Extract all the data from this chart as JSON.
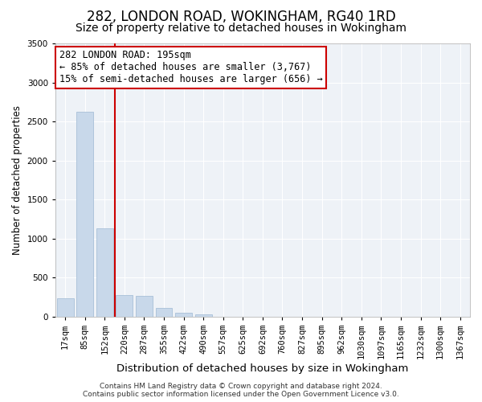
{
  "title": "282, LONDON ROAD, WOKINGHAM, RG40 1RD",
  "subtitle": "Size of property relative to detached houses in Wokingham",
  "xlabel": "Distribution of detached houses by size in Wokingham",
  "ylabel": "Number of detached properties",
  "categories": [
    "17sqm",
    "85sqm",
    "152sqm",
    "220sqm",
    "287sqm",
    "355sqm",
    "422sqm",
    "490sqm",
    "557sqm",
    "625sqm",
    "692sqm",
    "760sqm",
    "827sqm",
    "895sqm",
    "962sqm",
    "1030sqm",
    "1097sqm",
    "1165sqm",
    "1232sqm",
    "1300sqm",
    "1367sqm"
  ],
  "values": [
    230,
    2620,
    1130,
    270,
    265,
    105,
    50,
    30,
    0,
    0,
    0,
    0,
    0,
    0,
    0,
    0,
    0,
    0,
    0,
    0,
    0
  ],
  "bar_color": "#c8d8ea",
  "bar_edge_color": "#a8c0d8",
  "vline_x_index": 2.5,
  "vline_color": "#cc0000",
  "annotation_text": "282 LONDON ROAD: 195sqm\n← 85% of detached houses are smaller (3,767)\n15% of semi-detached houses are larger (656) →",
  "annotation_box_color": "#ffffff",
  "annotation_box_edge_color": "#cc0000",
  "ylim": [
    0,
    3500
  ],
  "yticks": [
    0,
    500,
    1000,
    1500,
    2000,
    2500,
    3000,
    3500
  ],
  "background_color": "#eef2f7",
  "grid_color": "#ffffff",
  "footer": "Contains HM Land Registry data © Crown copyright and database right 2024.\nContains public sector information licensed under the Open Government Licence v3.0.",
  "title_fontsize": 12,
  "subtitle_fontsize": 10,
  "xlabel_fontsize": 9.5,
  "ylabel_fontsize": 8.5,
  "tick_fontsize": 7.5,
  "annotation_fontsize": 8.5,
  "footer_fontsize": 6.5
}
